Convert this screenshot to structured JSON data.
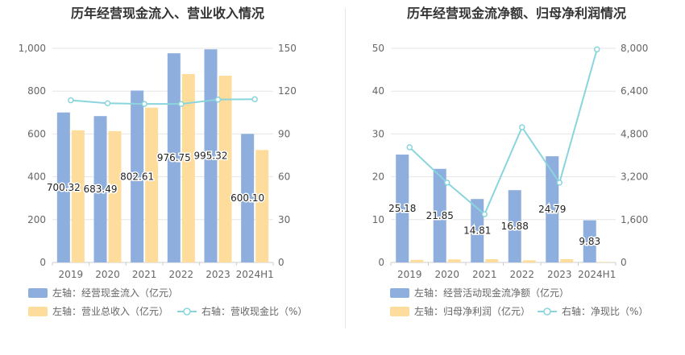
{
  "chart_data": [
    {
      "type": "bar",
      "title": "历年经营现金流入、营业收入情况",
      "categories": [
        "2019",
        "2020",
        "2021",
        "2022",
        "2023",
        "2024H1"
      ],
      "left_axis": {
        "ylim": [
          0,
          1000
        ],
        "ticks": [
          "0",
          "200",
          "400",
          "600",
          "800",
          "1,000"
        ]
      },
      "right_axis": {
        "ylim": [
          0,
          150
        ],
        "ticks": [
          "0",
          "30",
          "60",
          "90",
          "120",
          "150"
        ]
      },
      "series": [
        {
          "name": "左轴：经营现金流入（亿元）",
          "type": "bar",
          "axis": "left",
          "color": "#8eaedd",
          "values": [
            700.32,
            683.49,
            802.61,
            976.75,
            995.32,
            600.1
          ],
          "labels": [
            "700.32",
            "683.49",
            "802.61",
            "976.75",
            "995.32",
            "600.10"
          ]
        },
        {
          "name": "左轴：营业总收入（亿元）",
          "type": "bar",
          "axis": "left",
          "color": "#fddc9c",
          "values": [
            617,
            613,
            723,
            880,
            872,
            525
          ]
        },
        {
          "name": "右轴：营收现金比（%）",
          "type": "line",
          "axis": "right",
          "color": "#8ad5dd",
          "values": [
            113.6,
            111.5,
            111.0,
            111.0,
            114.1,
            114.3
          ]
        }
      ],
      "grid": true,
      "legend": "bottom"
    },
    {
      "type": "bar",
      "title": "历年经营现金流净额、归母净利润情况",
      "categories": [
        "2019",
        "2020",
        "2021",
        "2022",
        "2023",
        "2024H1"
      ],
      "left_axis": {
        "ylim": [
          0,
          50
        ],
        "ticks": [
          "0",
          "10",
          "20",
          "30",
          "40",
          "50"
        ]
      },
      "right_axis": {
        "ylim": [
          0,
          8000
        ],
        "ticks": [
          "0",
          "1,600",
          "3,200",
          "4,800",
          "6,400",
          "8,000"
        ]
      },
      "series": [
        {
          "name": "左轴：经营活动现金流净额（亿元）",
          "type": "bar",
          "axis": "left",
          "color": "#8eaedd",
          "values": [
            25.18,
            21.85,
            14.81,
            16.88,
            24.79,
            9.83
          ],
          "labels": [
            "25.18",
            "21.85",
            "14.81",
            "16.88",
            "24.79",
            "9.83"
          ]
        },
        {
          "name": "左轴：归母净利润（亿元）",
          "type": "bar",
          "axis": "left",
          "color": "#fddc9c",
          "values": [
            0.6,
            0.7,
            0.75,
            0.5,
            0.75,
            0.12
          ]
        },
        {
          "name": "右轴：净现比（%）",
          "type": "line",
          "axis": "right",
          "color": "#8ad5dd",
          "values": [
            4300,
            2980,
            1800,
            5050,
            2980,
            7960
          ]
        }
      ],
      "grid": true,
      "legend": "bottom"
    }
  ]
}
